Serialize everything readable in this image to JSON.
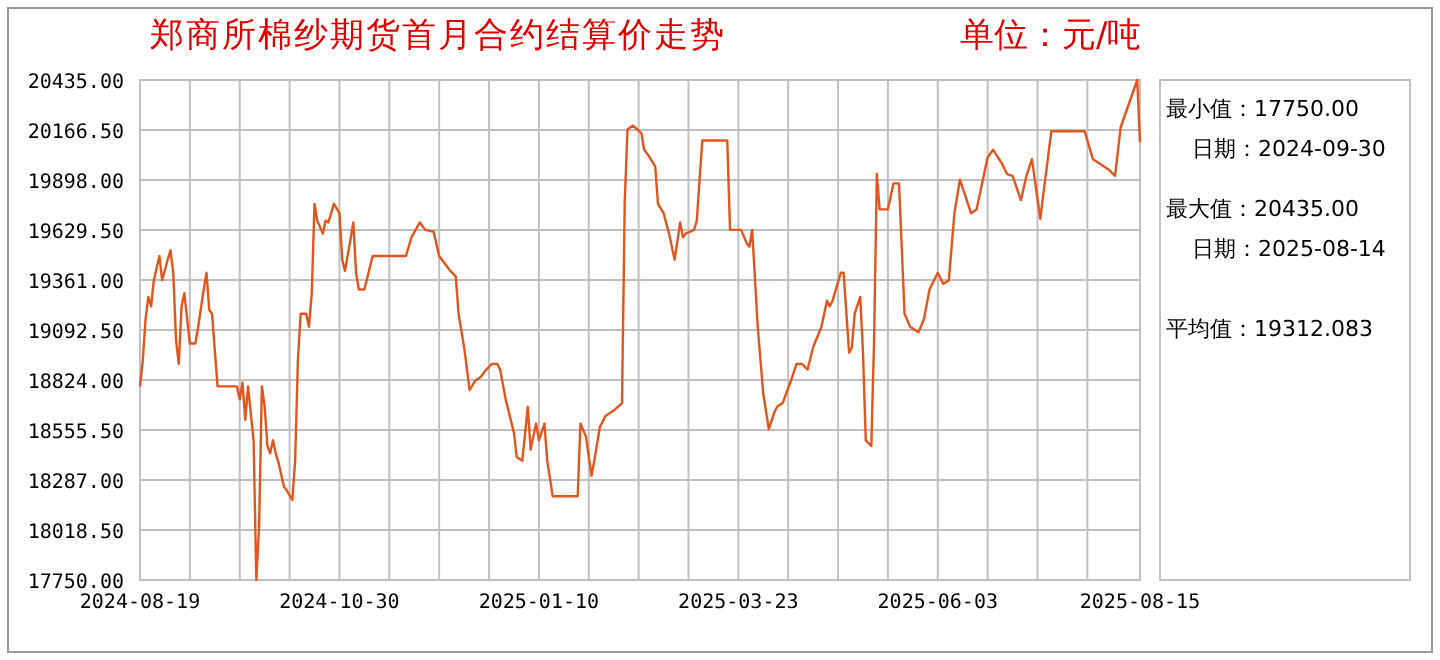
{
  "chart_data": {
    "type": "line",
    "title": "郑商所棉纱期货首月合约结算价走势",
    "subtitle": "单位：元/吨",
    "x": [
      "2024-08-19",
      "2024-08-20",
      "2024-08-21",
      "2024-08-22",
      "2024-08-23",
      "2024-08-24",
      "2024-08-26",
      "2024-08-27",
      "2024-08-29",
      "2024-08-30",
      "2024-08-31",
      "2024-09-01",
      "2024-09-02",
      "2024-09-03",
      "2024-09-04",
      "2024-09-06",
      "2024-09-08",
      "2024-09-09",
      "2024-09-11",
      "2024-09-12",
      "2024-09-13",
      "2024-09-14",
      "2024-09-16",
      "2024-09-23",
      "2024-09-24",
      "2024-09-25",
      "2024-09-26",
      "2024-09-27",
      "2024-09-29",
      "2024-09-30",
      "2024-10-01",
      "2024-10-02",
      "2024-10-03",
      "2024-10-04",
      "2024-10-05",
      "2024-10-06",
      "2024-10-07",
      "2024-10-08",
      "2024-10-10",
      "2024-10-11",
      "2024-10-13",
      "2024-10-14",
      "2024-10-15",
      "2024-10-16",
      "2024-10-18",
      "2024-10-19",
      "2024-10-20",
      "2024-10-21",
      "2024-10-22",
      "2024-10-24",
      "2024-10-25",
      "2024-10-26",
      "2024-10-28",
      "2024-10-30",
      "2024-10-31",
      "2024-11-01",
      "2024-11-03",
      "2024-11-04",
      "2024-11-05",
      "2024-11-06",
      "2024-11-08",
      "2024-11-11",
      "2024-11-23",
      "2024-11-25",
      "2024-11-28",
      "2024-11-30",
      "2024-12-03",
      "2024-12-05",
      "2024-12-07",
      "2024-12-09",
      "2024-12-11",
      "2024-12-12",
      "2024-12-14",
      "2024-12-16",
      "2024-12-18",
      "2024-12-20",
      "2024-12-22",
      "2024-12-24",
      "2024-12-26",
      "2024-12-27",
      "2024-12-29",
      "2025-01-01",
      "2025-01-02",
      "2025-01-04",
      "2025-01-06",
      "2025-01-07",
      "2025-01-09",
      "2025-01-10",
      "2025-01-12",
      "2025-01-13",
      "2025-01-15",
      "2025-01-24",
      "2025-01-25",
      "2025-01-27",
      "2025-01-29",
      "2025-01-30",
      "2025-02-01",
      "2025-02-03",
      "2025-02-06",
      "2025-02-09",
      "2025-02-10",
      "2025-02-11",
      "2025-02-13",
      "2025-02-16",
      "2025-02-17",
      "2025-02-19",
      "2025-02-21",
      "2025-02-22",
      "2025-02-24",
      "2025-02-26",
      "2025-02-28",
      "2025-03-02",
      "2025-03-03",
      "2025-03-04",
      "2025-03-07",
      "2025-03-08",
      "2025-03-10",
      "2025-03-19",
      "2025-03-20",
      "2025-03-24",
      "2025-03-26",
      "2025-03-27",
      "2025-03-28",
      "2025-03-30",
      "2025-04-01",
      "2025-04-03",
      "2025-04-05",
      "2025-04-06",
      "2025-04-08",
      "2025-04-11",
      "2025-04-13",
      "2025-04-15",
      "2025-04-17",
      "2025-04-19",
      "2025-04-22",
      "2025-04-24",
      "2025-04-25",
      "2025-04-26",
      "2025-04-29",
      "2025-04-30",
      "2025-05-02",
      "2025-05-03",
      "2025-05-04",
      "2025-05-06",
      "2025-05-07",
      "2025-05-08",
      "2025-05-10",
      "2025-05-11",
      "2025-05-12",
      "2025-05-13",
      "2025-05-16",
      "2025-05-18",
      "2025-05-20",
      "2025-05-22",
      "2025-05-24",
      "2025-05-27",
      "2025-05-29",
      "2025-05-31",
      "2025-06-03",
      "2025-06-05",
      "2025-06-07",
      "2025-06-09",
      "2025-06-11",
      "2025-06-13",
      "2025-06-15",
      "2025-06-17",
      "2025-06-21",
      "2025-06-23",
      "2025-06-26",
      "2025-06-28",
      "2025-06-30",
      "2025-07-03",
      "2025-07-05",
      "2025-07-07",
      "2025-07-10",
      "2025-07-11",
      "2025-07-14",
      "2025-07-26",
      "2025-07-29",
      "2025-07-31",
      "2025-08-04",
      "2025-08-06",
      "2025-08-08",
      "2025-08-14",
      "2025-08-15"
    ],
    "series": [
      {
        "color": "#e0561e",
        "values": [
          18790,
          18930,
          19150,
          19270,
          19220,
          19360,
          19490,
          19360,
          19470,
          19520,
          19400,
          19040,
          18910,
          19220,
          19290,
          19020,
          19020,
          19110,
          19310,
          19400,
          19200,
          19180,
          18790,
          18790,
          18720,
          18810,
          18610,
          18790,
          18500,
          17750,
          18040,
          18790,
          18680,
          18470,
          18430,
          18500,
          18430,
          18380,
          18250,
          18230,
          18180,
          18390,
          18930,
          19180,
          19180,
          19110,
          19290,
          19770,
          19680,
          19610,
          19680,
          19670,
          19770,
          19720,
          19470,
          19410,
          19580,
          19670,
          19400,
          19310,
          19310,
          19490,
          19490,
          19590,
          19670,
          19630,
          19620,
          19490,
          19450,
          19410,
          19380,
          19180,
          19000,
          18770,
          18820,
          18840,
          18880,
          18910,
          18910,
          18880,
          18720,
          18540,
          18410,
          18390,
          18680,
          18450,
          18590,
          18500,
          18590,
          18390,
          18200,
          18200,
          18590,
          18520,
          18310,
          18390,
          18570,
          18630,
          18660,
          18700,
          19790,
          20170,
          20190,
          20150,
          20060,
          20020,
          19970,
          19770,
          19720,
          19610,
          19470,
          19670,
          19590,
          19610,
          19630,
          19680,
          20110,
          20110,
          19630,
          19630,
          19560,
          19540,
          19630,
          19110,
          18750,
          18560,
          18650,
          18680,
          18700,
          18820,
          18910,
          18910,
          18880,
          19000,
          19110,
          19250,
          19220,
          19250,
          19400,
          19400,
          18970,
          19000,
          19180,
          19270,
          18970,
          18500,
          18470,
          19040,
          19930,
          19740,
          19740,
          19880,
          19880,
          19180,
          19110,
          19080,
          19150,
          19310,
          19400,
          19340,
          19360,
          19720,
          19900,
          19810,
          19720,
          19740,
          20020,
          20060,
          19990,
          19930,
          19920,
          19790,
          19920,
          20010,
          19690,
          19810,
          20160,
          20160,
          20010,
          19990,
          19950,
          19920,
          20180,
          20435,
          20100
        ]
      }
    ],
    "xlim": [
      "2024-08-19",
      "2025-08-15"
    ],
    "xticks": [
      "2024-08-19",
      {
        "value": "2024-09-06",
        "label": null
      },
      {
        "value": "2024-09-24",
        "label": null
      },
      {
        "value": "2024-10-12",
        "label": null
      },
      "2024-10-30",
      {
        "value": "2024-11-17",
        "label": null
      },
      {
        "value": "2024-12-05",
        "label": null
      },
      {
        "value": "2024-12-23",
        "label": null
      },
      "2025-01-10",
      {
        "value": "2025-01-28",
        "label": null
      },
      {
        "value": "2025-02-15",
        "label": null
      },
      {
        "value": "2025-03-05",
        "label": null
      },
      "2025-03-23",
      {
        "value": "2025-04-10",
        "label": null
      },
      {
        "value": "2025-04-28",
        "label": null
      },
      {
        "value": "2025-05-16",
        "label": null
      },
      "2025-06-03",
      {
        "value": "2025-06-21",
        "label": null
      },
      {
        "value": "2025-07-09",
        "label": null
      },
      {
        "value": "2025-07-27",
        "label": null
      },
      "2025-08-15"
    ],
    "ylim": [
      17750,
      20435
    ],
    "yticks": [
      {
        "value": 17750,
        "label": "17750.00"
      },
      {
        "value": 18018.5,
        "label": "18018.50"
      },
      {
        "value": 18287,
        "label": "18287.00"
      },
      {
        "value": 18555.5,
        "label": "18555.50"
      },
      {
        "value": 18824,
        "label": "18824.00"
      },
      {
        "value": 19092.5,
        "label": "19092.50"
      },
      {
        "value": 19361,
        "label": "19361.00"
      },
      {
        "value": 19629.5,
        "label": "19629.50"
      },
      {
        "value": 19898,
        "label": "19898.00"
      },
      {
        "value": 20166.5,
        "label": "20166.50"
      },
      {
        "value": 20435,
        "label": "20435.00"
      }
    ],
    "grid": true,
    "annotations": [
      "最小值：17750.00",
      "日期：2024-09-30",
      "最大值：20435.00",
      "日期：2025-08-14",
      "平均值：19312.083"
    ]
  }
}
